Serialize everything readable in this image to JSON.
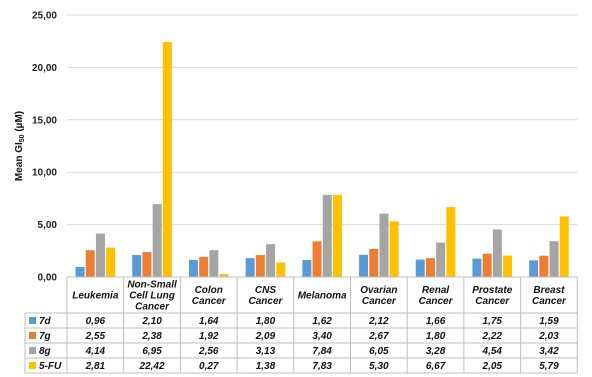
{
  "chart_data": {
    "type": "bar",
    "title": "",
    "ylabel_main": "Mean GI",
    "ylabel_sub": "50",
    "ylabel_unit": " (µM)",
    "ylim": [
      0,
      25
    ],
    "yticks": [
      "0,00",
      "5,00",
      "10,00",
      "15,00",
      "20,00",
      "25,00"
    ],
    "grid": true,
    "legend": "data-table",
    "categories": [
      [
        "Leukemia"
      ],
      [
        "Non-Small",
        "Cell Lung",
        "Cancer"
      ],
      [
        "Colon",
        "Cancer"
      ],
      [
        "CNS",
        "Cancer"
      ],
      [
        "Melanoma"
      ],
      [
        "Ovarian",
        "Cancer"
      ],
      [
        "Renal",
        "Cancer"
      ],
      [
        "Prostate",
        "Cancer"
      ],
      [
        "Breast",
        "Cancer"
      ]
    ],
    "series": [
      {
        "name": "7d",
        "color": "#5B9BD5",
        "values": [
          0.96,
          2.1,
          1.64,
          1.8,
          1.62,
          2.12,
          1.66,
          1.75,
          1.59
        ],
        "labels": [
          "0,96",
          "2,10",
          "1,64",
          "1,80",
          "1,62",
          "2,12",
          "1,66",
          "1,75",
          "1,59"
        ]
      },
      {
        "name": "7g",
        "color": "#ED7D31",
        "values": [
          2.55,
          2.38,
          1.92,
          2.09,
          3.4,
          2.67,
          1.8,
          2.22,
          2.03
        ],
        "labels": [
          "2,55",
          "2,38",
          "1,92",
          "2,09",
          "3,40",
          "2,67",
          "1,80",
          "2,22",
          "2,03"
        ]
      },
      {
        "name": "8g",
        "color": "#A5A5A5",
        "values": [
          4.14,
          6.95,
          2.56,
          3.13,
          7.84,
          6.05,
          3.28,
          4.54,
          3.42
        ],
        "labels": [
          "4,14",
          "6,95",
          "2,56",
          "3,13",
          "7,84",
          "6,05",
          "3,28",
          "4,54",
          "3,42"
        ]
      },
      {
        "name": "5-FU",
        "color": "#FFC000",
        "values": [
          2.81,
          22.42,
          0.27,
          1.38,
          7.83,
          5.3,
          6.67,
          2.05,
          5.79
        ],
        "labels": [
          "2,81",
          "22,42",
          "0,27",
          "1,38",
          "7,83",
          "5,30",
          "6,67",
          "2,05",
          "5,79"
        ]
      }
    ]
  }
}
